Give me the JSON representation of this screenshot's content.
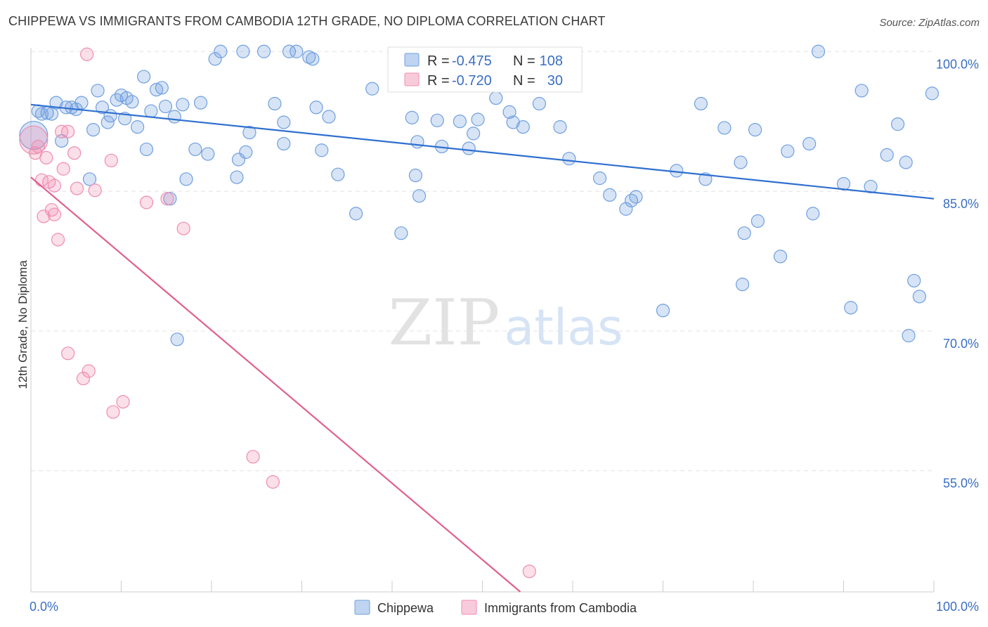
{
  "title": "CHIPPEWA VS IMMIGRANTS FROM CAMBODIA 12TH GRADE, NO DIPLOMA CORRELATION CHART",
  "source": "Source: ZipAtlas.com",
  "watermark": {
    "zip": "ZIP",
    "atlas": "atlas"
  },
  "stats": [
    {
      "r_label": "R = ",
      "r": "-0.475",
      "n_label": "N = ",
      "n": "108",
      "color": "#6f9fe0"
    },
    {
      "r_label": "R = ",
      "r": "-0.720",
      "n_label": "N = ",
      "n": "30",
      "color": "#f08cb0"
    }
  ],
  "legend": [
    {
      "name": "Chippewa",
      "color": "#6f9fe0"
    },
    {
      "name": "Immigrants from Cambodia",
      "color": "#f08cb0"
    }
  ],
  "chart_data": {
    "type": "scatter",
    "title": "CHIPPEWA VS IMMIGRANTS FROM CAMBODIA 12TH GRADE, NO DIPLOMA CORRELATION CHART",
    "xlabel": "",
    "ylabel": "12th Grade, No Diploma",
    "xlim": [
      0,
      100
    ],
    "ylim": [
      42,
      101
    ],
    "x_tick_labels": {
      "min": "0.0%",
      "max": "100.0%"
    },
    "y_ticks": [
      {
        "value": 55,
        "label": "55.0%"
      },
      {
        "value": 70,
        "label": "70.0%"
      },
      {
        "value": 85,
        "label": "85.0%"
      },
      {
        "value": 100,
        "label": "100.0%"
      }
    ],
    "grid": true,
    "series": [
      {
        "name": "Chippewa",
        "color": "#6f9fe0",
        "trend": {
          "x": [
            0,
            100
          ],
          "y": [
            94.3,
            84.2
          ],
          "color": "#2f6fd0"
        },
        "points": [
          {
            "x": 0.3,
            "y": 91.0,
            "big": true
          },
          {
            "x": 0.8,
            "y": 93.6
          },
          {
            "x": 1.2,
            "y": 93.3
          },
          {
            "x": 1.8,
            "y": 93.4
          },
          {
            "x": 2.3,
            "y": 93.3
          },
          {
            "x": 2.8,
            "y": 94.5
          },
          {
            "x": 3.4,
            "y": 90.4
          },
          {
            "x": 3.9,
            "y": 94.0
          },
          {
            "x": 4.5,
            "y": 94.0
          },
          {
            "x": 5.0,
            "y": 93.8
          },
          {
            "x": 5.6,
            "y": 94.5
          },
          {
            "x": 6.5,
            "y": 86.3
          },
          {
            "x": 6.9,
            "y": 91.6
          },
          {
            "x": 7.4,
            "y": 95.8
          },
          {
            "x": 7.9,
            "y": 94.0
          },
          {
            "x": 8.5,
            "y": 92.4
          },
          {
            "x": 8.8,
            "y": 93.1
          },
          {
            "x": 9.5,
            "y": 94.8
          },
          {
            "x": 10.0,
            "y": 95.3
          },
          {
            "x": 10.4,
            "y": 92.8
          },
          {
            "x": 10.6,
            "y": 95.0
          },
          {
            "x": 11.2,
            "y": 94.6
          },
          {
            "x": 11.8,
            "y": 91.9
          },
          {
            "x": 12.5,
            "y": 97.3
          },
          {
            "x": 12.8,
            "y": 89.5
          },
          {
            "x": 13.3,
            "y": 93.6
          },
          {
            "x": 13.9,
            "y": 95.9
          },
          {
            "x": 14.5,
            "y": 96.1
          },
          {
            "x": 14.9,
            "y": 94.1
          },
          {
            "x": 15.4,
            "y": 84.2
          },
          {
            "x": 15.9,
            "y": 93.0
          },
          {
            "x": 16.2,
            "y": 69.1
          },
          {
            "x": 16.8,
            "y": 94.3
          },
          {
            "x": 17.2,
            "y": 86.3
          },
          {
            "x": 18.2,
            "y": 89.5
          },
          {
            "x": 18.8,
            "y": 94.5
          },
          {
            "x": 19.6,
            "y": 89.0
          },
          {
            "x": 20.4,
            "y": 99.2
          },
          {
            "x": 21.0,
            "y": 100.0
          },
          {
            "x": 22.8,
            "y": 86.5
          },
          {
            "x": 23.0,
            "y": 88.4
          },
          {
            "x": 23.8,
            "y": 89.2
          },
          {
            "x": 24.2,
            "y": 91.3
          },
          {
            "x": 23.5,
            "y": 100.0
          },
          {
            "x": 25.8,
            "y": 100.0
          },
          {
            "x": 27.0,
            "y": 94.4
          },
          {
            "x": 28.0,
            "y": 92.4
          },
          {
            "x": 28.0,
            "y": 90.1
          },
          {
            "x": 28.6,
            "y": 100.0
          },
          {
            "x": 29.4,
            "y": 100.0
          },
          {
            "x": 30.8,
            "y": 99.4
          },
          {
            "x": 31.2,
            "y": 99.2
          },
          {
            "x": 31.6,
            "y": 94.0
          },
          {
            "x": 32.2,
            "y": 89.4
          },
          {
            "x": 33.0,
            "y": 93.0
          },
          {
            "x": 34.0,
            "y": 86.8
          },
          {
            "x": 36.0,
            "y": 82.6
          },
          {
            "x": 37.8,
            "y": 96.0
          },
          {
            "x": 41.0,
            "y": 80.5
          },
          {
            "x": 42.2,
            "y": 92.9
          },
          {
            "x": 42.6,
            "y": 86.7
          },
          {
            "x": 43.0,
            "y": 84.5
          },
          {
            "x": 42.8,
            "y": 90.3
          },
          {
            "x": 45.0,
            "y": 92.6
          },
          {
            "x": 45.5,
            "y": 89.8
          },
          {
            "x": 47.5,
            "y": 92.5
          },
          {
            "x": 48.5,
            "y": 89.6
          },
          {
            "x": 49.0,
            "y": 91.2
          },
          {
            "x": 49.5,
            "y": 92.7
          },
          {
            "x": 51.5,
            "y": 95.0
          },
          {
            "x": 53.0,
            "y": 93.5
          },
          {
            "x": 53.4,
            "y": 92.4
          },
          {
            "x": 54.5,
            "y": 91.9
          },
          {
            "x": 56.3,
            "y": 94.4
          },
          {
            "x": 58.6,
            "y": 91.9
          },
          {
            "x": 59.6,
            "y": 88.5
          },
          {
            "x": 63.0,
            "y": 86.4
          },
          {
            "x": 64.1,
            "y": 84.6
          },
          {
            "x": 65.9,
            "y": 83.1
          },
          {
            "x": 66.5,
            "y": 84.0
          },
          {
            "x": 67.0,
            "y": 84.4
          },
          {
            "x": 70.0,
            "y": 72.2
          },
          {
            "x": 71.5,
            "y": 87.2
          },
          {
            "x": 74.7,
            "y": 86.3
          },
          {
            "x": 74.2,
            "y": 94.4
          },
          {
            "x": 76.8,
            "y": 91.8
          },
          {
            "x": 78.6,
            "y": 88.1
          },
          {
            "x": 78.8,
            "y": 75.0
          },
          {
            "x": 79.0,
            "y": 80.5
          },
          {
            "x": 80.2,
            "y": 91.6
          },
          {
            "x": 80.5,
            "y": 81.8
          },
          {
            "x": 83.0,
            "y": 78.0
          },
          {
            "x": 83.8,
            "y": 89.3
          },
          {
            "x": 86.2,
            "y": 90.1
          },
          {
            "x": 86.6,
            "y": 82.6
          },
          {
            "x": 87.2,
            "y": 100.0
          },
          {
            "x": 90.0,
            "y": 85.8
          },
          {
            "x": 90.8,
            "y": 72.5
          },
          {
            "x": 92.0,
            "y": 95.8
          },
          {
            "x": 93.0,
            "y": 85.5
          },
          {
            "x": 94.8,
            "y": 88.9
          },
          {
            "x": 96.0,
            "y": 92.2
          },
          {
            "x": 96.9,
            "y": 88.1
          },
          {
            "x": 97.2,
            "y": 69.5
          },
          {
            "x": 97.8,
            "y": 75.4
          },
          {
            "x": 98.4,
            "y": 73.7
          },
          {
            "x": 99.8,
            "y": 95.5
          }
        ]
      },
      {
        "name": "Immigrants from Cambodia",
        "color": "#f08cb0",
        "trend": {
          "x": [
            0,
            54.2
          ],
          "y": [
            86.5,
            42
          ],
          "color": "#e06090"
        },
        "points": [
          {
            "x": 0.3,
            "y": 90.5,
            "big": true
          },
          {
            "x": 0.5,
            "y": 89.1
          },
          {
            "x": 0.8,
            "y": 89.8
          },
          {
            "x": 1.2,
            "y": 86.2
          },
          {
            "x": 1.4,
            "y": 82.3
          },
          {
            "x": 1.7,
            "y": 88.6
          },
          {
            "x": 2.0,
            "y": 86.0
          },
          {
            "x": 2.3,
            "y": 83.0
          },
          {
            "x": 2.6,
            "y": 85.6
          },
          {
            "x": 2.6,
            "y": 82.5
          },
          {
            "x": 3.0,
            "y": 79.8
          },
          {
            "x": 3.4,
            "y": 91.4
          },
          {
            "x": 3.6,
            "y": 87.4
          },
          {
            "x": 4.1,
            "y": 67.6
          },
          {
            "x": 4.1,
            "y": 91.4
          },
          {
            "x": 4.8,
            "y": 89.1
          },
          {
            "x": 5.1,
            "y": 85.3
          },
          {
            "x": 5.8,
            "y": 64.9
          },
          {
            "x": 6.4,
            "y": 65.7
          },
          {
            "x": 7.1,
            "y": 85.1
          },
          {
            "x": 6.2,
            "y": 99.7
          },
          {
            "x": 8.9,
            "y": 88.3
          },
          {
            "x": 9.1,
            "y": 61.3
          },
          {
            "x": 10.2,
            "y": 62.4
          },
          {
            "x": 12.8,
            "y": 83.8
          },
          {
            "x": 15.1,
            "y": 84.2
          },
          {
            "x": 16.9,
            "y": 81.0
          },
          {
            "x": 24.6,
            "y": 56.5
          },
          {
            "x": 26.8,
            "y": 53.8
          },
          {
            "x": 55.2,
            "y": 44.2
          }
        ]
      }
    ]
  }
}
